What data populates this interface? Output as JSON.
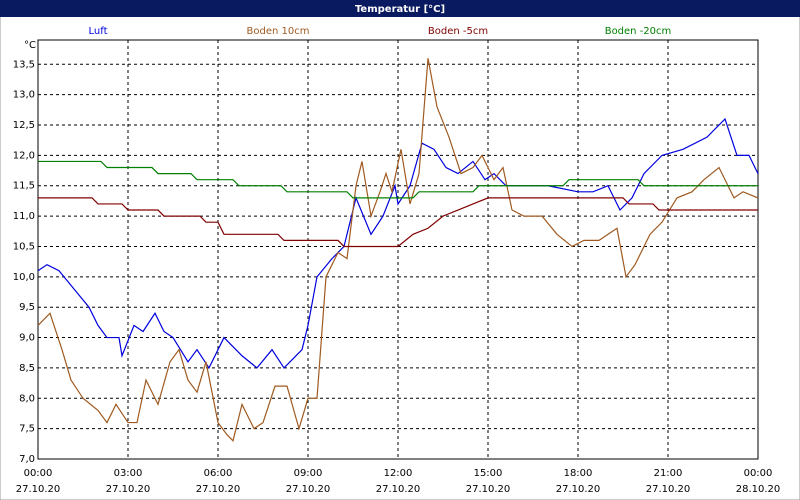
{
  "chart_data": {
    "type": "line",
    "title": "Temperatur [°C]",
    "y_unit": "°C",
    "xlim": [
      0,
      24
    ],
    "xticks": [
      {
        "value": 0,
        "label": "00:00"
      },
      {
        "value": 3,
        "label": "03:00"
      },
      {
        "value": 6,
        "label": "06:00"
      },
      {
        "value": 9,
        "label": "09:00"
      },
      {
        "value": 12,
        "label": "12:00"
      },
      {
        "value": 15,
        "label": "15:00"
      },
      {
        "value": 18,
        "label": "18:00"
      },
      {
        "value": 21,
        "label": "21:00"
      },
      {
        "value": 24,
        "label": "00:00"
      }
    ],
    "xtick_dates": [
      "27.10.20",
      "27.10.20",
      "27.10.20",
      "27.10.20",
      "27.10.20",
      "27.10.20",
      "27.10.20",
      "27.10.20",
      "28.10.20"
    ],
    "ylim": [
      7,
      13.9
    ],
    "yticks": [
      {
        "value": 7,
        "label": "7,0"
      },
      {
        "value": 7.5,
        "label": "7,5"
      },
      {
        "value": 8,
        "label": "8,0"
      },
      {
        "value": 8.5,
        "label": "8,5"
      },
      {
        "value": 9,
        "label": "9,0"
      },
      {
        "value": 9.5,
        "label": "9,5"
      },
      {
        "value": 10,
        "label": "10,0"
      },
      {
        "value": 10.5,
        "label": "10,5"
      },
      {
        "value": 11,
        "label": "11,0"
      },
      {
        "value": 11.5,
        "label": "11,5"
      },
      {
        "value": 12,
        "label": "12,0"
      },
      {
        "value": 12.5,
        "label": "12,5"
      },
      {
        "value": 13,
        "label": "13,0"
      },
      {
        "value": 13.5,
        "label": "13,5"
      }
    ],
    "grid": true,
    "series": [
      {
        "name": "Luft",
        "color": "#0000e0",
        "x": [
          0,
          0.3,
          0.7,
          1.2,
          1.7,
          2,
          2.3,
          2.7,
          2.8,
          3.2,
          3.5,
          3.9,
          4.2,
          4.5,
          5,
          5.3,
          5.7,
          6.2,
          6.8,
          7.3,
          7.8,
          8.2,
          8.8,
          9,
          9.3,
          9.8,
          10.2,
          10.6,
          11.1,
          11.5,
          11.9,
          12,
          12.4,
          12.8,
          13.2,
          13.6,
          14,
          14.5,
          14.9,
          15.2,
          15.6,
          16.5,
          17,
          18,
          18.5,
          19,
          19.4,
          19.8,
          20.2,
          20.8,
          21.5,
          22.3,
          22.9,
          23.3,
          23.7,
          24
        ],
        "values": [
          10.1,
          10.2,
          10.1,
          9.8,
          9.5,
          9.2,
          9,
          9,
          8.7,
          9.2,
          9.1,
          9.4,
          9.1,
          9,
          8.6,
          8.8,
          8.5,
          9,
          8.7,
          8.5,
          8.8,
          8.5,
          8.8,
          9.2,
          10,
          10.3,
          10.5,
          11.3,
          10.7,
          11,
          11.5,
          11.2,
          11.5,
          12.2,
          12.1,
          11.8,
          11.7,
          11.9,
          11.6,
          11.7,
          11.5,
          11.5,
          11.5,
          11.4,
          11.4,
          11.5,
          11.1,
          11.3,
          11.7,
          12,
          12.1,
          12.3,
          12.6,
          12,
          12,
          11.7
        ]
      },
      {
        "name": "Boden 10cm",
        "color": "#a05a20",
        "x": [
          0,
          0.4,
          0.8,
          1.1,
          1.5,
          2,
          2.3,
          2.6,
          3,
          3.3,
          3.6,
          4,
          4.4,
          4.7,
          5,
          5.3,
          5.6,
          6,
          6.3,
          6.5,
          6.8,
          7.2,
          7.5,
          7.9,
          8.3,
          8.7,
          9,
          9.3,
          9.6,
          10,
          10.3,
          10.6,
          10.8,
          11.1,
          11.4,
          11.6,
          11.8,
          12.1,
          12.4,
          12.7,
          13,
          13.3,
          13.7,
          14.1,
          14.5,
          14.8,
          15.2,
          15.5,
          15.8,
          16.2,
          16.8,
          17.3,
          17.8,
          18.2,
          18.7,
          19.3,
          19.6,
          19.9,
          20.4,
          20.8,
          21.3,
          21.8,
          22.2,
          22.7,
          23.2,
          23.5,
          24
        ],
        "values": [
          9.2,
          9.4,
          8.8,
          8.3,
          8,
          7.8,
          7.6,
          7.9,
          7.6,
          7.6,
          8.3,
          7.9,
          8.6,
          8.8,
          8.3,
          8.1,
          8.6,
          7.6,
          7.4,
          7.3,
          7.9,
          7.5,
          7.6,
          8.2,
          8.2,
          7.5,
          8,
          8,
          10,
          10.4,
          10.3,
          11.5,
          11.9,
          11,
          11.4,
          11.7,
          11.4,
          12.1,
          11.2,
          11.7,
          13.6,
          12.8,
          12.3,
          11.7,
          11.8,
          12,
          11.6,
          11.8,
          11.1,
          11,
          11,
          10.7,
          10.5,
          10.6,
          10.6,
          10.8,
          10,
          10.2,
          10.7,
          10.9,
          11.3,
          11.4,
          11.6,
          11.8,
          11.3,
          11.4,
          11.3
        ]
      },
      {
        "name": "Boden -5cm",
        "color": "#800000",
        "x": [
          0,
          1.8,
          2,
          2.8,
          3,
          4,
          4.2,
          5.4,
          5.6,
          6,
          6.2,
          8,
          8.2,
          10,
          10.2,
          12,
          12.5,
          13,
          13.5,
          14,
          14.5,
          15,
          19.5,
          19.7,
          20.5,
          20.7,
          24
        ],
        "values": [
          11.3,
          11.3,
          11.2,
          11.2,
          11.1,
          11.1,
          11,
          11,
          10.9,
          10.9,
          10.7,
          10.7,
          10.6,
          10.6,
          10.5,
          10.5,
          10.7,
          10.8,
          11,
          11.1,
          11.2,
          11.3,
          11.3,
          11.2,
          11.2,
          11.1,
          11.1
        ]
      },
      {
        "name": "Boden -20cm",
        "color": "#008000",
        "x": [
          0,
          2.1,
          2.3,
          3.8,
          4,
          5.1,
          5.3,
          6.5,
          6.7,
          8.1,
          8.3,
          10.3,
          10.5,
          12.5,
          12.7,
          14.5,
          14.7,
          17.5,
          17.7,
          20,
          20.2,
          24
        ],
        "values": [
          11.9,
          11.9,
          11.8,
          11.8,
          11.7,
          11.7,
          11.6,
          11.6,
          11.5,
          11.5,
          11.4,
          11.4,
          11.3,
          11.3,
          11.4,
          11.4,
          11.5,
          11.5,
          11.6,
          11.6,
          11.5,
          11.5
        ]
      }
    ]
  }
}
